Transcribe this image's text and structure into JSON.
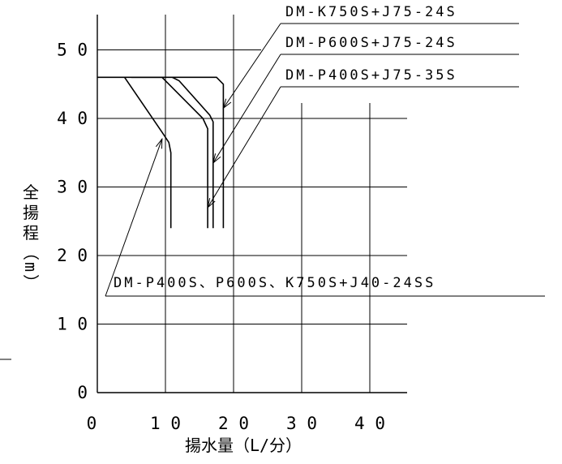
{
  "chart_data": {
    "type": "line",
    "title": "",
    "xlabel": "揚水量（L/分）",
    "ylabel": [
      "全",
      "揚",
      "程",
      "（",
      "m",
      "）"
    ],
    "xlim": [
      0,
      45
    ],
    "ylim": [
      0,
      55
    ],
    "x_ticks": [
      0,
      10,
      20,
      30,
      40
    ],
    "y_ticks": [
      0,
      10,
      20,
      30,
      40,
      50
    ],
    "x_tick_labels": [
      "0",
      "1 0",
      "2 0",
      "3 0",
      "4 0"
    ],
    "y_tick_labels": [
      "0",
      "1 0",
      "2 0",
      "3 0",
      "4 0",
      "5 0"
    ],
    "grid": true,
    "series": [
      {
        "name": "DM-K750S+J75-24S",
        "points": [
          [
            5,
            46
          ],
          [
            17.5,
            46
          ],
          [
            18.5,
            45
          ],
          [
            18.5,
            24
          ]
        ]
      },
      {
        "name": "DM-P600S+J75-24S",
        "points": [
          [
            11,
            46
          ],
          [
            12,
            45.5
          ],
          [
            16.5,
            40.5
          ],
          [
            17,
            39.5
          ],
          [
            17,
            24
          ]
        ]
      },
      {
        "name": "DM-P400S+J75-35S",
        "points": [
          [
            0,
            46
          ],
          [
            9.5,
            46
          ],
          [
            15.5,
            40
          ],
          [
            16.2,
            38.5
          ],
          [
            16.2,
            24
          ]
        ]
      },
      {
        "name": "DM-P400S、P600S、K750S+J40-24SS",
        "points": [
          [
            4,
            46
          ],
          [
            9.5,
            38
          ],
          [
            10.5,
            36.5
          ],
          [
            10.8,
            35
          ],
          [
            10.8,
            24
          ]
        ]
      }
    ],
    "annotations": [
      {
        "text": "DM-K750S+J75-24S",
        "series": 0,
        "anchor": [
          18.5,
          41.5
        ]
      },
      {
        "text": "DM-P600S+J75-24S",
        "series": 1,
        "anchor": [
          17,
          33.5
        ]
      },
      {
        "text": "DM-P400S+J75-35S",
        "series": 2,
        "anchor": [
          16.2,
          27
        ]
      },
      {
        "text": "DM-P400S、P600S、K750S+J40-24SS",
        "series": 3,
        "anchor": [
          9.5,
          37
        ]
      }
    ]
  }
}
